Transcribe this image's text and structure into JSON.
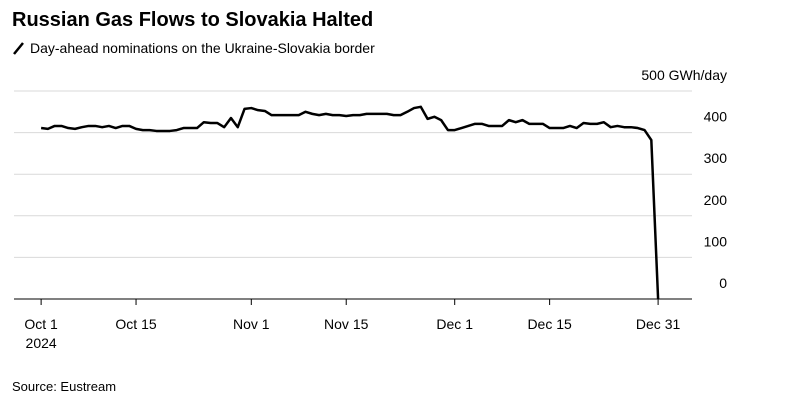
{
  "chart_data": {
    "type": "line",
    "title": "Russian Gas Flows to Slovakia Halted",
    "subtitle": "Day-ahead nominations on the Ukraine-Slovakia border",
    "source": "Source: Eustream",
    "year": "2024",
    "color": "#000000",
    "grid": true,
    "x": [
      "2024-10-01",
      "2024-10-02",
      "2024-10-03",
      "2024-10-04",
      "2024-10-05",
      "2024-10-06",
      "2024-10-07",
      "2024-10-08",
      "2024-10-09",
      "2024-10-10",
      "2024-10-11",
      "2024-10-12",
      "2024-10-13",
      "2024-10-14",
      "2024-10-15",
      "2024-10-16",
      "2024-10-17",
      "2024-10-18",
      "2024-10-19",
      "2024-10-20",
      "2024-10-21",
      "2024-10-22",
      "2024-10-23",
      "2024-10-24",
      "2024-10-25",
      "2024-10-26",
      "2024-10-27",
      "2024-10-28",
      "2024-10-29",
      "2024-10-30",
      "2024-10-31",
      "2024-11-01",
      "2024-11-02",
      "2024-11-03",
      "2024-11-04",
      "2024-11-05",
      "2024-11-06",
      "2024-11-07",
      "2024-11-08",
      "2024-11-09",
      "2024-11-10",
      "2024-11-11",
      "2024-11-12",
      "2024-11-13",
      "2024-11-14",
      "2024-11-15",
      "2024-11-16",
      "2024-11-17",
      "2024-11-18",
      "2024-11-19",
      "2024-11-20",
      "2024-11-21",
      "2024-11-22",
      "2024-11-23",
      "2024-11-24",
      "2024-11-25",
      "2024-11-26",
      "2024-11-27",
      "2024-11-28",
      "2024-11-29",
      "2024-11-30",
      "2024-12-01",
      "2024-12-02",
      "2024-12-03",
      "2024-12-04",
      "2024-12-05",
      "2024-12-06",
      "2024-12-07",
      "2024-12-08",
      "2024-12-09",
      "2024-12-10",
      "2024-12-11",
      "2024-12-12",
      "2024-12-13",
      "2024-12-14",
      "2024-12-15",
      "2024-12-16",
      "2024-12-17",
      "2024-12-18",
      "2024-12-19",
      "2024-12-20",
      "2024-12-21",
      "2024-12-22",
      "2024-12-23",
      "2024-12-24",
      "2024-12-25",
      "2024-12-26",
      "2024-12-27",
      "2024-12-28",
      "2024-12-29",
      "2024-12-30",
      "2024-12-31"
    ],
    "values": [
      411,
      409,
      416,
      416,
      411,
      409,
      413,
      416,
      416,
      413,
      416,
      411,
      416,
      416,
      409,
      406,
      406,
      404,
      404,
      404,
      406,
      411,
      411,
      411,
      425,
      423,
      423,
      413,
      435,
      413,
      457,
      459,
      454,
      452,
      442,
      442,
      442,
      442,
      442,
      450,
      445,
      442,
      445,
      442,
      442,
      440,
      442,
      442,
      445,
      445,
      445,
      445,
      442,
      442,
      450,
      459,
      462,
      433,
      438,
      430,
      406,
      406,
      411,
      416,
      421,
      421,
      416,
      416,
      416,
      430,
      425,
      430,
      421,
      421,
      421,
      411,
      411,
      411,
      416,
      411,
      423,
      421,
      421,
      425,
      413,
      416,
      413,
      413,
      411,
      406,
      382,
      0
    ],
    "xlim": [
      "2024-09-27",
      "2025-01-05"
    ],
    "xticks": [
      {
        "value": "2024-10-01",
        "label": "Oct 1"
      },
      {
        "value": "2024-10-15",
        "label": "Oct 15"
      },
      {
        "value": "2024-11-01",
        "label": "Nov 1"
      },
      {
        "value": "2024-11-15",
        "label": "Nov 15"
      },
      {
        "value": "2024-12-01",
        "label": "Dec 1"
      },
      {
        "value": "2024-12-15",
        "label": "Dec 15"
      },
      {
        "value": "2024-12-31",
        "label": "Dec 31"
      }
    ],
    "ylim": [
      0,
      500
    ],
    "yticks": [
      0,
      100,
      200,
      300,
      400,
      {
        "value": 500,
        "label": "500 GWh/day"
      }
    ]
  }
}
